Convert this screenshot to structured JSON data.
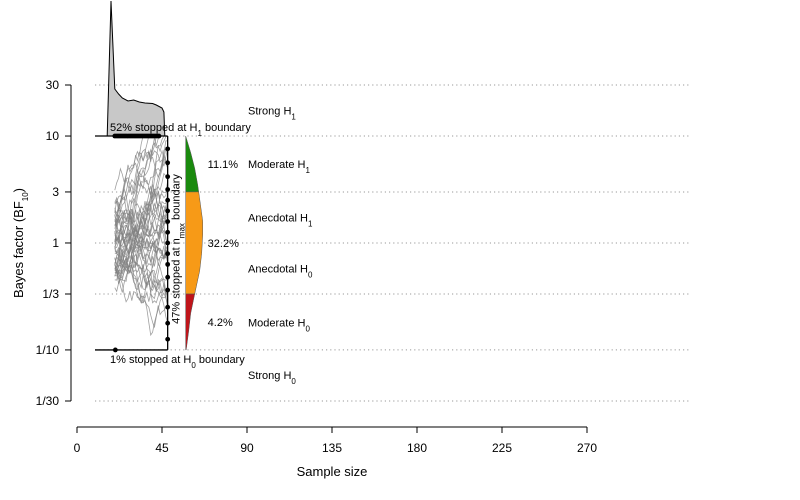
{
  "chart_data": {
    "type": "line",
    "title": "",
    "xlabel": "Sample size",
    "ylabel": {
      "main": "Bayes factor (BF",
      "sub": "10",
      "close": ")"
    },
    "xlim": [
      0,
      270
    ],
    "x_ticks": [
      0,
      45,
      90,
      135,
      180,
      225,
      270
    ],
    "y_scale": "log",
    "y_ticks": [
      {
        "value": 30,
        "label": "30"
      },
      {
        "value": 10,
        "label": "10"
      },
      {
        "value": 3,
        "label": "3"
      },
      {
        "value": 1,
        "label": "1"
      },
      {
        "value": 0.3333,
        "label": "1/3"
      },
      {
        "value": 0.1,
        "label": "1/10"
      },
      {
        "value": 0.0333,
        "label": "1/30"
      }
    ],
    "ylim": [
      0.0333,
      30
    ],
    "grid_lines_y": [
      30,
      10,
      3,
      1,
      0.3333,
      0.1,
      0.0333
    ],
    "boundaries": {
      "h1": 10,
      "h0": 0.1,
      "n_start": 20,
      "n_max": 48
    },
    "evidence_labels": [
      {
        "text": "Strong H",
        "sub": "1",
        "y": 17.3
      },
      {
        "text": "Moderate H",
        "sub": "1",
        "y": 5.5
      },
      {
        "text": "Anecdotal H",
        "sub": "1",
        "y": 1.73
      },
      {
        "text": "Anecdotal H",
        "sub": "0",
        "y": 0.58
      },
      {
        "text": "Moderate H",
        "sub": "0",
        "y": 0.18
      },
      {
        "text": "Strong H",
        "sub": "0",
        "y": 0.058
      }
    ],
    "annotations": {
      "h1_stop": {
        "pre": "52% stopped at H",
        "sub": "1",
        "post": " boundary"
      },
      "h0_stop": {
        "pre": "1% stopped at H",
        "sub": "0",
        "post": " boundary"
      },
      "nmax_stop": {
        "pre": "47% stopped at n",
        "sub": "max",
        "post": " boundary"
      }
    },
    "nmax_distribution": [
      {
        "category": "Moderate H1",
        "percent": "11.1%",
        "range": [
          3,
          10
        ],
        "color": "#1a8a0e"
      },
      {
        "category": "Anecdotal",
        "percent": "32.2%",
        "range": [
          0.3333,
          3
        ],
        "color": "#f79a17"
      },
      {
        "category": "Moderate H0",
        "percent": "4.2%",
        "range": [
          0.1,
          0.3333
        ],
        "color": "#c0141a"
      }
    ],
    "h1_stop_density_color": "#c8c8c8",
    "trajectory_color": "#808080"
  }
}
